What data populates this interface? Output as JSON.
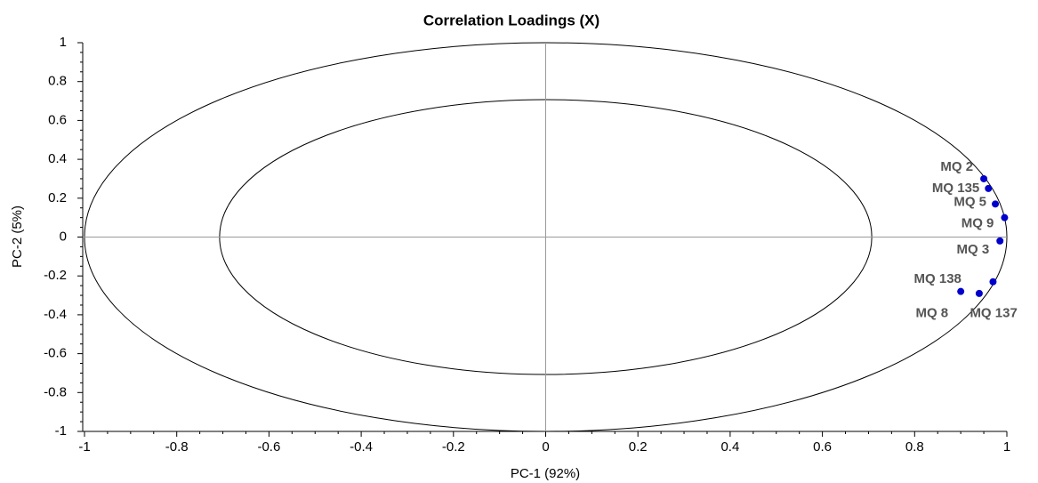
{
  "chart_data": {
    "type": "scatter",
    "title": "Correlation Loadings (X)",
    "x_label": "PC-1 (92%)",
    "y_label": "PC-2 (5%)",
    "labels": [
      "MQ 2",
      "MQ 135",
      "MQ 5",
      "MQ 9",
      "MQ 3",
      "MQ 137",
      "MQ 138",
      "MQ 8"
    ],
    "x": [
      0.95,
      0.96,
      0.975,
      0.995,
      0.985,
      0.97,
      0.94,
      0.9
    ],
    "y": [
      0.3,
      0.25,
      0.17,
      0.1,
      -0.02,
      -0.23,
      -0.29,
      -0.28
    ],
    "color": "#0000cc",
    "xlim": [
      -1,
      1
    ],
    "ylim": [
      -1,
      1
    ],
    "xticks": [
      -1,
      -0.8,
      -0.6,
      -0.4,
      -0.2,
      0,
      0.2,
      0.4,
      0.6,
      0.8,
      1
    ],
    "yticks": [
      -1,
      -0.8,
      -0.6,
      -0.4,
      -0.2,
      0,
      0.2,
      0.4,
      0.6,
      0.8,
      1
    ]
  }
}
